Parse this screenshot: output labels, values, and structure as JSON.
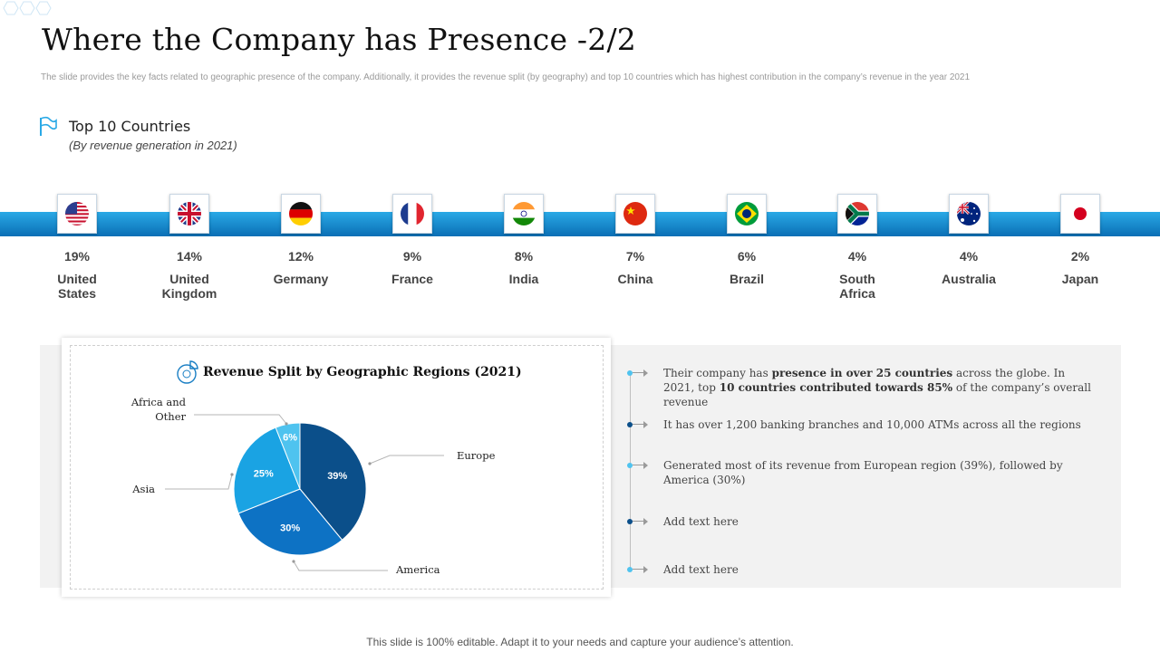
{
  "header": {
    "title": "Where the Company has Presence -2/2",
    "subtitle": "The slide provides the key facts related to geographic presence of the company. Additionally, it provides the revenue split (by geography) and top 10 countries which has highest contribution in the company’s revenue in the year 2021"
  },
  "top10": {
    "title": "Top 10 Countries",
    "subtitle": "(By revenue generation in 2021)",
    "countries": [
      {
        "pct": "19%",
        "line1": "United",
        "line2": "States",
        "flag": "us-flag-icon"
      },
      {
        "pct": "14%",
        "line1": "United",
        "line2": "Kingdom",
        "flag": "uk-flag-icon"
      },
      {
        "pct": "12%",
        "line1": "Germany",
        "line2": "",
        "flag": "germany-flag-icon"
      },
      {
        "pct": "9%",
        "line1": "France",
        "line2": "",
        "flag": "france-flag-icon"
      },
      {
        "pct": "8%",
        "line1": "India",
        "line2": "",
        "flag": "india-flag-icon"
      },
      {
        "pct": "7%",
        "line1": "China",
        "line2": "",
        "flag": "china-flag-icon"
      },
      {
        "pct": "6%",
        "line1": "Brazil",
        "line2": "",
        "flag": "brazil-flag-icon"
      },
      {
        "pct": "4%",
        "line1": "South",
        "line2": "Africa",
        "flag": "south-africa-flag-icon"
      },
      {
        "pct": "4%",
        "line1": "Australia",
        "line2": "",
        "flag": "australia-flag-icon"
      },
      {
        "pct": "2%",
        "line1": "Japan",
        "line2": "",
        "flag": "japan-flag-icon"
      }
    ]
  },
  "chart_data": {
    "type": "pie",
    "title": "Revenue Split by Geographic Regions (2021)",
    "categories": [
      "Europe",
      "America",
      "Asia",
      "Africa and Other"
    ],
    "values": [
      39,
      30,
      25,
      6
    ],
    "value_labels": [
      "39%",
      "30%",
      "25%",
      "6%"
    ],
    "label_lines": [
      [
        "Europe"
      ],
      [
        "America"
      ],
      [
        "Asia"
      ],
      [
        "Africa and",
        "Other"
      ]
    ],
    "colors": [
      "#0b4f8a",
      "#0d72c4",
      "#1aa3e3",
      "#4fc3ef"
    ]
  },
  "bullets": [
    {
      "parts": [
        {
          "t": "Their company has ",
          "b": false
        },
        {
          "t": "presence in over 25 countries",
          "b": true
        },
        {
          "t": " across the globe. In 2021, top ",
          "b": false
        },
        {
          "t": "10 countries contributed towards 85%",
          "b": true
        },
        {
          "t": " of the company’s overall revenue",
          "b": false
        }
      ],
      "dot": "#4fc3ef"
    },
    {
      "parts": [
        {
          "t": "It has over 1,200 banking branches and 10,000 ATMs across all the regions",
          "b": false
        }
      ],
      "dot": "#0b4f8a"
    },
    {
      "parts": [
        {
          "t": "Generated most of its revenue from European region (39%), followed by America (30%)",
          "b": false
        }
      ],
      "dot": "#4fc3ef"
    },
    {
      "parts": [
        {
          "t": "Add text here",
          "b": false
        }
      ],
      "dot": "#0b4f8a"
    },
    {
      "parts": [
        {
          "t": "Add text here",
          "b": false
        }
      ],
      "dot": "#4fc3ef"
    }
  ],
  "footer": "This slide is 100% editable. Adapt it to your needs and capture your audience’s attention."
}
